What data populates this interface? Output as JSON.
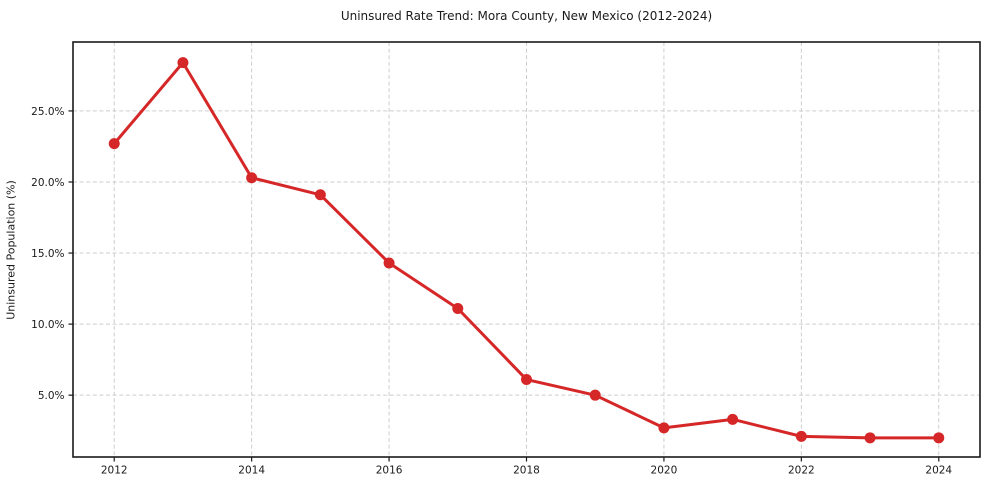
{
  "chart_data": {
    "type": "line",
    "title": "Uninsured Rate Trend: Mora County, New Mexico (2012-2024)",
    "xlabel": "",
    "ylabel": "Uninsured Population (%)",
    "x": [
      2012,
      2013,
      2014,
      2015,
      2016,
      2017,
      2018,
      2019,
      2020,
      2021,
      2022,
      2023,
      2024
    ],
    "values": [
      22.7,
      28.4,
      20.3,
      19.1,
      14.3,
      11.1,
      6.1,
      5.0,
      2.7,
      3.3,
      2.1,
      2.0,
      2.0
    ],
    "xticks": [
      2012,
      2014,
      2016,
      2018,
      2020,
      2022,
      2024
    ],
    "xtick_labels": [
      "2012",
      "2014",
      "2016",
      "2018",
      "2020",
      "2022",
      "2024"
    ],
    "yticks": [
      5,
      10,
      15,
      20,
      25
    ],
    "ytick_labels": [
      "5.0%",
      "10.0%",
      "15.0%",
      "20.0%",
      "25.0%"
    ],
    "xlim": [
      2011.4,
      2024.6
    ],
    "ylim": [
      0.65,
      29.85
    ],
    "grid": true,
    "grid_style": "dashed",
    "legend": false,
    "marker": "circle",
    "line_color": "#d62728",
    "grid_color": "#cdcdcd",
    "axis_color": "#1a1a1a",
    "text_color": "#1a1a1a",
    "background": "#ffffff"
  }
}
